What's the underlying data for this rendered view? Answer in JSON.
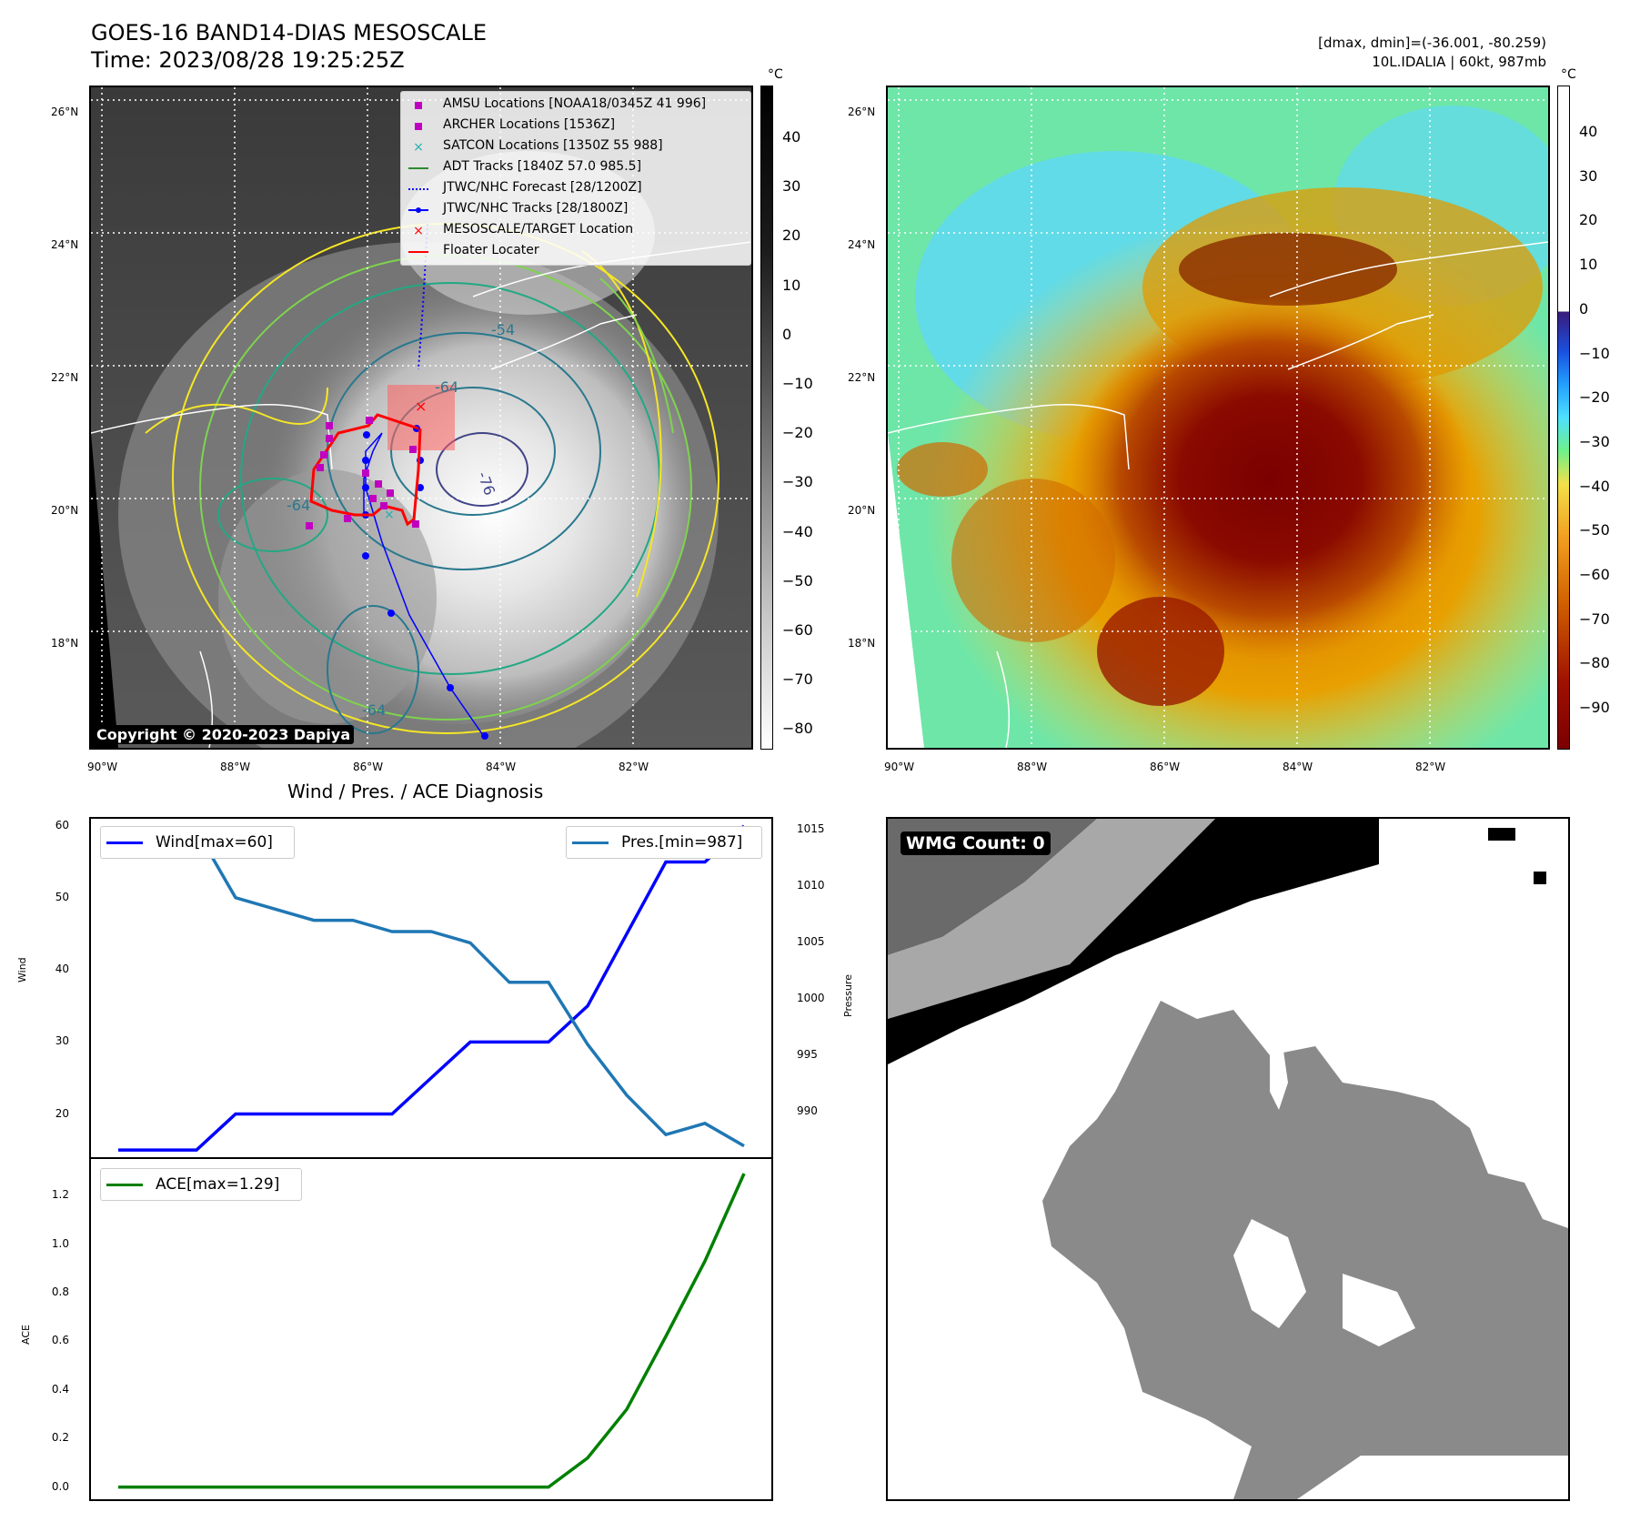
{
  "header": {
    "title": "GOES-16 BAND14-DIAS MESOSCALE",
    "time": "Time: 2023/08/28 19:25:25Z",
    "dmax_line": "[dmax, dmin]=(-36.001, -80.259)",
    "storm_line": "10L.IDALIA | 60kt, 987mb"
  },
  "map_left": {
    "lat_labels": [
      "26°N",
      "24°N",
      "22°N",
      "20°N",
      "18°N"
    ],
    "lon_labels": [
      "90°W",
      "88°W",
      "86°W",
      "84°W",
      "82°W"
    ],
    "copyright": "Copyright © 2020-2023 Dapiya",
    "contour_labels": [
      "-54",
      "-64",
      "-64",
      "-76",
      "-64"
    ],
    "colorbar": {
      "unit": "°C",
      "ticks": [
        "40",
        "30",
        "20",
        "10",
        "0",
        "−10",
        "−20",
        "−30",
        "−40",
        "−50",
        "−60",
        "−70",
        "−80"
      ]
    },
    "legend": [
      {
        "label": "AMSU Locations [NOAA18/0345Z 41 996]",
        "marker": "square",
        "color": "#c000c0"
      },
      {
        "label": "ARCHER Locations [1536Z]",
        "marker": "square",
        "color": "#c000c0"
      },
      {
        "label": "SATCON Locations [1350Z 55 988]",
        "marker": "x",
        "color": "#20b0b0"
      },
      {
        "label": "ADT Tracks [1840Z 57.0 985.5]",
        "marker": "line",
        "color": "#2e8b2e"
      },
      {
        "label": "JTWC/NHC Forecast [28/1200Z]",
        "marker": "dotted",
        "color": "#0000ff"
      },
      {
        "label": "JTWC/NHC Tracks [28/1800Z]",
        "marker": "line-dot",
        "color": "#0000ff"
      },
      {
        "label": "MESOSCALE/TARGET Location",
        "marker": "x",
        "color": "#ff0000"
      },
      {
        "label": "Floater Locater",
        "marker": "line",
        "color": "#ff0000"
      }
    ]
  },
  "map_right": {
    "lat_labels": [
      "26°N",
      "24°N",
      "22°N",
      "20°N",
      "18°N"
    ],
    "lon_labels": [
      "90°W",
      "88°W",
      "86°W",
      "84°W",
      "82°W"
    ],
    "colorbar": {
      "unit": "°C",
      "ticks": [
        "40",
        "30",
        "20",
        "10",
        "0",
        "−10",
        "−20",
        "−30",
        "−40",
        "−50",
        "−60",
        "−70",
        "−80",
        "−90"
      ]
    }
  },
  "diagnosis": {
    "title": "Wind / Pres. / ACE Diagnosis",
    "wind_legend": "Wind[max=60]",
    "pres_legend": "Pres.[min=987]",
    "ace_legend": "ACE[max=1.29]",
    "wind_ylabel": "Wind",
    "pres_ylabel": "Pressure",
    "ace_ylabel": "ACE",
    "wind_ticks": [
      "60",
      "50",
      "40",
      "30",
      "20"
    ],
    "pres_ticks": [
      "1015",
      "1010",
      "1005",
      "1000",
      "995",
      "990"
    ],
    "ace_ticks": [
      "1.2",
      "1.0",
      "0.8",
      "0.6",
      "0.4",
      "0.2",
      "0.0"
    ]
  },
  "wmg": {
    "label": "WMG Count: 0"
  },
  "colors": {
    "wind": "#0000ff",
    "pressure": "#1f77b4",
    "ace": "#008000"
  },
  "chart_data": [
    {
      "type": "line",
      "title": "Wind / Pres. / ACE Diagnosis",
      "ylabel": "Wind",
      "ylim": [
        14,
        61
      ],
      "series": [
        {
          "name": "Wind[max=60]",
          "values": [
            15,
            15,
            15,
            20,
            20,
            20,
            20,
            20,
            25,
            30,
            30,
            30,
            35,
            45,
            55,
            55,
            60
          ]
        }
      ]
    },
    {
      "type": "line",
      "ylabel": "Pressure",
      "ylim": [
        986,
        1016
      ],
      "series": [
        {
          "name": "Pres.[min=987]",
          "values": [
            1015,
            1015,
            1015,
            1009,
            1008,
            1007,
            1007,
            1006,
            1006,
            1005,
            1001.5,
            1001.5,
            996,
            991.5,
            988,
            989,
            987
          ]
        }
      ]
    },
    {
      "type": "line",
      "ylabel": "ACE",
      "ylim": [
        -0.05,
        1.35
      ],
      "series": [
        {
          "name": "ACE[max=1.29]",
          "values": [
            0,
            0,
            0,
            0,
            0,
            0,
            0,
            0,
            0,
            0,
            0,
            0,
            0.12,
            0.32,
            0.62,
            0.93,
            1.29
          ]
        }
      ]
    }
  ]
}
